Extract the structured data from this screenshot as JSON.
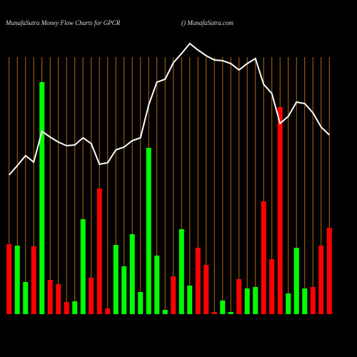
{
  "chart_data": {
    "type": "bar",
    "title": "MunafaSutra  Money Flow  Charts for GPCR",
    "subtitle": "() MunafaSutra.com",
    "values": [
      98,
      96,
      45,
      95,
      325,
      48,
      42,
      17,
      18,
      133,
      51,
      176,
      8,
      97,
      67,
      112,
      31,
      233,
      82,
      6,
      53,
      119,
      40,
      93,
      69,
      3,
      19,
      3,
      49,
      36,
      38,
      158,
      77,
      290,
      29,
      93,
      36,
      38,
      96,
      121
    ],
    "colors": [
      "#ff0000",
      "#00ff00",
      "#00ff00",
      "#ff0000",
      "#00ff00",
      "#ff0000",
      "#ff0000",
      "#ff0000",
      "#00ff00",
      "#00ff00",
      "#ff0000",
      "#ff0000",
      "#ff0000",
      "#00ff00",
      "#00ff00",
      "#00ff00",
      "#00ff00",
      "#00ff00",
      "#00ff00",
      "#00ff00",
      "#ff0000",
      "#00ff00",
      "#00ff00",
      "#ff0000",
      "#ff0000",
      "#ff0000",
      "#00ff00",
      "#00ff00",
      "#ff0000",
      "#00ff00",
      "#00ff00",
      "#ff0000",
      "#ff0000",
      "#ff0000",
      "#00ff00",
      "#00ff00",
      "#00ff00",
      "#ff0000",
      "#ff0000",
      "#ff0000"
    ],
    "line_values": [
      195,
      208,
      222,
      213,
      256,
      248,
      241,
      236,
      237,
      247,
      239,
      210,
      212,
      230,
      234,
      243,
      247,
      293,
      325,
      329,
      352,
      365,
      379,
      370,
      362,
      356,
      355,
      351,
      342,
      351,
      358,
      322,
      309,
      267,
      277,
      297,
      295,
      282,
      262,
      251
    ],
    "line_color": "#ffffff",
    "grid_color": "#b36b00",
    "ylim": [
      0,
      440
    ]
  }
}
